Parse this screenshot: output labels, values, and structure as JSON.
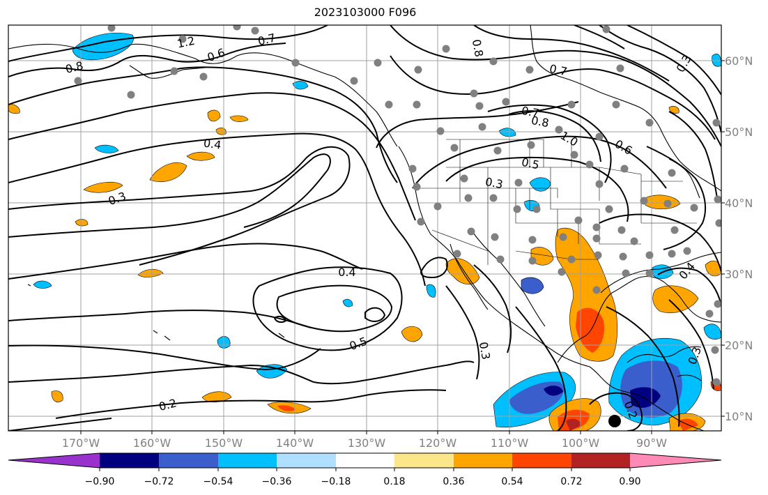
{
  "title": "2023103000 F096",
  "map": {
    "lon_ticks": [
      "170°W",
      "160°W",
      "150°W",
      "140°W",
      "130°W",
      "120°W",
      "110°W",
      "100°W",
      "90°W"
    ],
    "lat_ticks": [
      "60°N",
      "50°N",
      "40°N",
      "30°N",
      "20°N",
      "10°N"
    ],
    "contour_labels": [
      "1.2",
      "0.7",
      "0.6",
      "0.8",
      "0.8",
      "0.7",
      "0.7",
      "0.8",
      "1.0",
      "0.6",
      "0.5",
      "0.3",
      "0.3",
      "0.4",
      "0.3",
      "0.4",
      "0.5",
      "0.3",
      "0.2",
      "0.2",
      "0.3",
      "0.4"
    ],
    "colors": {
      "land_outline": "#000000",
      "contour": "#000000",
      "station_dot": "#808080",
      "grid": "#a0a0a0"
    }
  },
  "colorbar": {
    "tick_labels": [
      "−0.90",
      "−0.72",
      "−0.54",
      "−0.36",
      "−0.18",
      "0.18",
      "0.36",
      "0.54",
      "0.72",
      "0.90"
    ],
    "colors": [
      "#9932cc",
      "#000080",
      "#3a5fcd",
      "#00bfff",
      "#b0e0ff",
      "#ffffff",
      "#fbe78a",
      "#ffa500",
      "#ff4500",
      "#b22222",
      "#ff8ab5"
    ]
  }
}
